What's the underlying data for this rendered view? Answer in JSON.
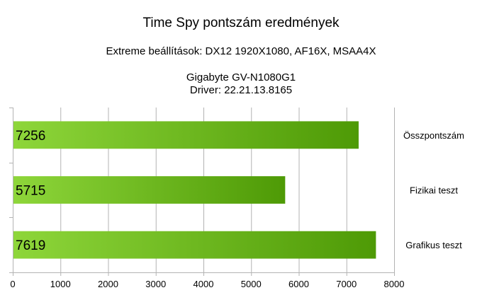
{
  "chart_data": {
    "type": "bar",
    "orientation": "horizontal",
    "title": "Time Spy pontszám eredmények",
    "subtitle": "Extreme beállítások: DX12 1920X1080, AF16X, MSAA4X",
    "device_lines": [
      "Gigabyte GV-N1080G1",
      "Driver: 22.21.13.8165"
    ],
    "categories": [
      "Összpontszám",
      "Fizikai teszt",
      "Grafikus teszt"
    ],
    "values": [
      7256,
      5715,
      7619
    ],
    "data_labels": [
      "7256",
      "5715",
      "7619"
    ],
    "xlim": [
      0,
      8000
    ],
    "x_ticks": [
      0,
      1000,
      2000,
      3000,
      4000,
      5000,
      6000,
      7000,
      8000
    ],
    "x_tick_labels": [
      "0",
      "1000",
      "2000",
      "3000",
      "4000",
      "5000",
      "6000",
      "7000",
      "8000"
    ],
    "grid": true,
    "bar_color_start": "#8ed63a",
    "bar_color_end": "#4e9a06",
    "legend": "none"
  }
}
